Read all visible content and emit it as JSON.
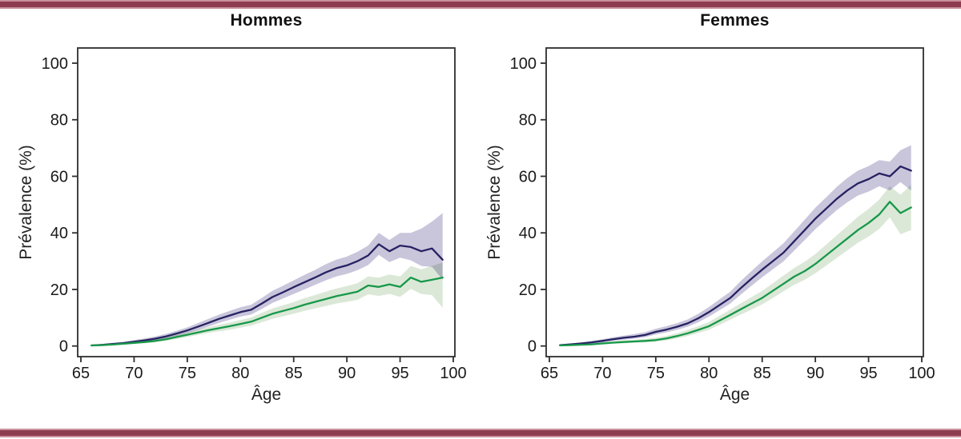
{
  "figure": {
    "background": "#ffffff",
    "top_bar_color": "#8e3d50",
    "bar_edge_color": "#c9919c",
    "frame_color": "#2e2e2e",
    "text_color": "#1a1a1a"
  },
  "chart_data": [
    {
      "type": "line",
      "title": "Hommes",
      "xlabel": "Âge",
      "ylabel": "Prévalence (%)",
      "xlim": [
        65,
        100
      ],
      "ylim": [
        0,
        100
      ],
      "xticks": [
        65,
        70,
        75,
        80,
        85,
        90,
        95,
        100
      ],
      "yticks": [
        0,
        20,
        40,
        60,
        80,
        100
      ],
      "grid": false,
      "legend": "none",
      "x": [
        66,
        67,
        68,
        69,
        70,
        71,
        72,
        73,
        74,
        75,
        76,
        77,
        78,
        79,
        80,
        81,
        82,
        83,
        84,
        85,
        86,
        87,
        88,
        89,
        90,
        91,
        92,
        93,
        94,
        95,
        96,
        97,
        98,
        99
      ],
      "series": [
        {
          "name": "courbe-bleu-fonce",
          "color": "#262262",
          "band_color": "#c9c5db",
          "values": [
            0.2,
            0.4,
            0.7,
            1.0,
            1.5,
            2.0,
            2.6,
            3.4,
            4.4,
            5.5,
            6.8,
            8.2,
            9.6,
            10.8,
            12.0,
            12.8,
            15.0,
            17.3,
            19.0,
            20.8,
            22.5,
            24.2,
            26.0,
            27.5,
            28.5,
            30.0,
            32.0,
            36.0,
            33.5,
            35.5,
            35.0,
            33.5,
            34.5,
            30.5
          ],
          "lower": [
            0.1,
            0.2,
            0.4,
            0.6,
            1.0,
            1.4,
            1.9,
            2.6,
            3.5,
            4.5,
            5.6,
            6.9,
            8.2,
            9.3,
            10.4,
            11.1,
            13.1,
            15.2,
            16.8,
            18.4,
            20.0,
            21.6,
            23.2,
            24.6,
            25.5,
            26.8,
            28.6,
            32.2,
            29.7,
            31.2,
            30.3,
            28.3,
            28.0,
            23.5
          ],
          "upper": [
            0.4,
            0.7,
            1.1,
            1.5,
            2.1,
            2.7,
            3.4,
            4.3,
            5.4,
            6.6,
            8.1,
            9.6,
            11.1,
            12.4,
            13.7,
            14.6,
            17.0,
            19.5,
            21.3,
            23.2,
            25.1,
            26.9,
            28.9,
            30.5,
            31.6,
            33.3,
            35.5,
            40.0,
            37.5,
            40.0,
            40.0,
            41.5,
            44.0,
            47.0
          ]
        },
        {
          "name": "courbe-verte",
          "color": "#17984a",
          "band_color": "#dbe8d7",
          "values": [
            0.2,
            0.3,
            0.5,
            0.8,
            1.1,
            1.4,
            1.8,
            2.4,
            3.2,
            4.0,
            4.8,
            5.6,
            6.3,
            7.0,
            7.8,
            8.6,
            10.0,
            11.4,
            12.4,
            13.4,
            14.6,
            15.6,
            16.6,
            17.6,
            18.4,
            19.2,
            21.4,
            20.9,
            21.8,
            20.9,
            24.2,
            22.7,
            23.4,
            24.2
          ],
          "lower": [
            0.1,
            0.2,
            0.3,
            0.5,
            0.8,
            1.0,
            1.3,
            1.8,
            2.5,
            3.2,
            3.9,
            4.6,
            5.2,
            5.8,
            6.5,
            7.2,
            8.4,
            9.6,
            10.5,
            11.4,
            12.4,
            13.3,
            14.1,
            15.0,
            15.6,
            16.3,
            18.3,
            17.7,
            18.4,
            17.4,
            20.2,
            18.4,
            18.0,
            13.5
          ],
          "upper": [
            0.4,
            0.5,
            0.8,
            1.2,
            1.5,
            1.9,
            2.4,
            3.1,
            4.0,
            4.9,
            5.8,
            6.7,
            7.5,
            8.3,
            9.2,
            10.1,
            11.7,
            13.3,
            14.4,
            15.5,
            16.9,
            18.0,
            19.2,
            20.3,
            21.2,
            22.2,
            24.6,
            24.2,
            25.3,
            24.6,
            28.3,
            27.1,
            28.3,
            29.5
          ]
        }
      ]
    },
    {
      "type": "line",
      "title": "Femmes",
      "xlabel": "Âge",
      "ylabel": "Prévalence (%)",
      "xlim": [
        65,
        100
      ],
      "ylim": [
        0,
        100
      ],
      "xticks": [
        65,
        70,
        75,
        80,
        85,
        90,
        95,
        100
      ],
      "yticks": [
        0,
        20,
        40,
        60,
        80,
        100
      ],
      "grid": false,
      "legend": "none",
      "x": [
        66,
        67,
        68,
        69,
        70,
        71,
        72,
        73,
        74,
        75,
        76,
        77,
        78,
        79,
        80,
        81,
        82,
        83,
        84,
        85,
        86,
        87,
        88,
        89,
        90,
        91,
        92,
        93,
        94,
        95,
        96,
        97,
        98,
        99
      ],
      "series": [
        {
          "name": "courbe-bleu-fonce",
          "color": "#262262",
          "band_color": "#c9c5db",
          "values": [
            0.3,
            0.6,
            0.9,
            1.3,
            1.8,
            2.4,
            2.9,
            3.3,
            3.9,
            5.0,
            5.8,
            6.8,
            8.0,
            9.8,
            12.0,
            14.5,
            17.0,
            20.5,
            23.8,
            27.0,
            30.0,
            33.0,
            37.0,
            41.0,
            45.0,
            48.5,
            52.0,
            55.0,
            57.5,
            59.0,
            61.0,
            60.0,
            63.5,
            62.0
          ],
          "lower": [
            0.2,
            0.4,
            0.6,
            0.9,
            1.3,
            1.8,
            2.2,
            2.6,
            3.1,
            4.1,
            4.8,
            5.7,
            6.8,
            8.4,
            10.4,
            12.7,
            15.0,
            18.2,
            21.3,
            24.3,
            27.1,
            29.9,
            33.7,
            37.5,
            41.3,
            44.7,
            48.0,
            50.8,
            53.2,
            54.6,
            56.5,
            55.0,
            58.0,
            55.0
          ],
          "upper": [
            0.5,
            0.9,
            1.3,
            1.8,
            2.4,
            3.1,
            3.7,
            4.2,
            4.9,
            6.1,
            7.0,
            8.1,
            9.4,
            11.4,
            13.8,
            16.5,
            19.2,
            23.0,
            26.5,
            29.9,
            33.1,
            36.3,
            40.5,
            44.7,
            48.9,
            52.5,
            56.2,
            59.4,
            62.0,
            63.6,
            65.7,
            65.2,
            69.2,
            71.0
          ]
        },
        {
          "name": "courbe-verte",
          "color": "#17984a",
          "band_color": "#dbe8d7",
          "values": [
            0.2,
            0.3,
            0.45,
            0.6,
            0.9,
            1.2,
            1.4,
            1.6,
            1.8,
            2.1,
            2.7,
            3.5,
            4.5,
            5.7,
            7.0,
            9.0,
            11.0,
            13.0,
            15.0,
            17.0,
            19.5,
            22.0,
            24.5,
            26.5,
            29.0,
            32.0,
            35.0,
            38.0,
            41.0,
            43.5,
            46.5,
            51.0,
            47.0,
            49.0
          ],
          "lower": [
            0.1,
            0.2,
            0.3,
            0.4,
            0.6,
            0.8,
            1.0,
            1.1,
            1.3,
            1.5,
            2.0,
            2.7,
            3.5,
            4.6,
            5.7,
            7.5,
            9.3,
            11.1,
            12.9,
            14.7,
            17.0,
            19.3,
            21.6,
            23.4,
            25.7,
            28.4,
            31.1,
            33.8,
            36.5,
            38.7,
            41.4,
            45.5,
            39.5,
            41.0
          ],
          "upper": [
            0.4,
            0.5,
            0.7,
            0.9,
            1.3,
            1.7,
            2.0,
            2.2,
            2.5,
            2.9,
            3.6,
            4.5,
            5.7,
            7.0,
            8.5,
            10.7,
            12.9,
            15.1,
            17.3,
            19.5,
            22.2,
            24.9,
            27.6,
            29.8,
            32.5,
            35.8,
            39.1,
            42.4,
            45.7,
            48.5,
            51.8,
            56.5,
            53.5,
            57.0
          ]
        }
      ]
    }
  ]
}
